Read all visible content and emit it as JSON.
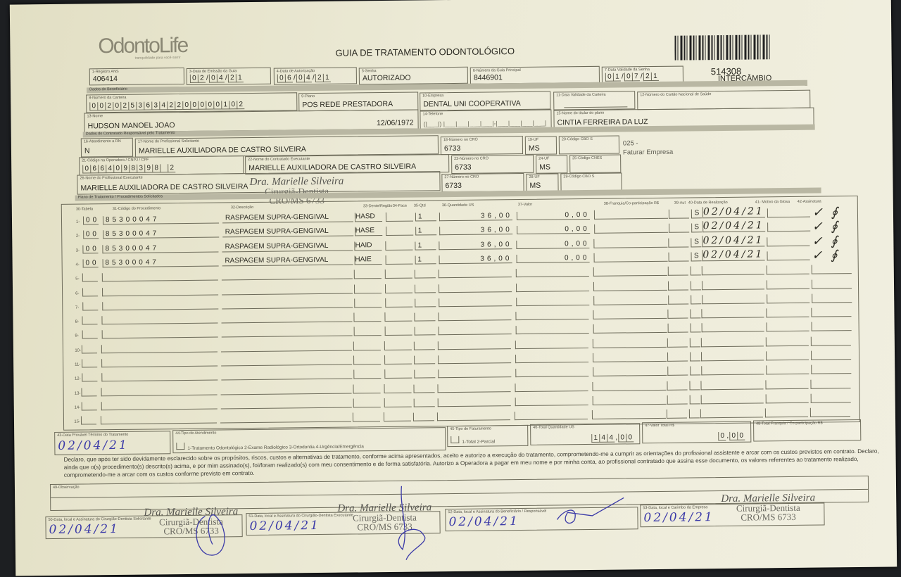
{
  "header": {
    "logo": "OdontoLife",
    "logo_tagline": "tranquilidade para você sorrir",
    "title": "GUIA DE TRATAMENTO ODONTOLÓGICO",
    "guide_number": "514308",
    "guide_type": "INTERCÂMBIO"
  },
  "fields": {
    "f1": {
      "label": "1-Registro ANS",
      "value": "406414"
    },
    "f3": {
      "label": "3-Data de Emissão da Guia",
      "value": "02/04/21"
    },
    "f4": {
      "label": "4-Data de Autorização",
      "value": "06/04/21"
    },
    "f5": {
      "label": "5-Senha",
      "value": "AUTORIZADO"
    },
    "f6": {
      "label": "6-Número da Guia Principal",
      "value": "8446901"
    },
    "f7": {
      "label": "7-Data Validade da Senha",
      "value": "01/07/21"
    },
    "sec_beneficiario": "Dados do Beneficiário",
    "f8": {
      "label": "8-Número da Carteira",
      "value": "00202536342200000102"
    },
    "f9": {
      "label": "9-Plano",
      "value": "POS REDE PRESTADORA"
    },
    "f10": {
      "label": "10-Empresa",
      "value": "DENTAL UNI  COOPERATIVA"
    },
    "f11": {
      "label": "11-Data Validade da Carteira",
      "value": ""
    },
    "f12": {
      "label": "12-Número do Cartão Nacional de Saúde",
      "value": ""
    },
    "f13": {
      "label": "13-Nome",
      "value": "HUDSON MANOEL JOAO",
      "birth": "12/06/1972"
    },
    "f14": {
      "label": "14-Telefone",
      "value": ""
    },
    "f15": {
      "label": "15-Nome do titular do plano",
      "value": "CINTIA FERREIRA DA LUZ"
    },
    "sec_contratado": "Dados do Contratado Responsável pelo Tratamento",
    "f16": {
      "label": "16-Atendimento a RN",
      "value": "N"
    },
    "f17": {
      "label": "17-Nome do Profissional Solicitante",
      "value": "MARIELLE AUXILIADORA DE CASTRO SILVEIRA"
    },
    "f18": {
      "label": "18-Número no CRO",
      "value": "6733"
    },
    "f19": {
      "label": "19-UF",
      "value": "MS"
    },
    "f20": {
      "label": "20-Código CBO S",
      "value": ""
    },
    "billing_note_1": "025 -",
    "billing_note_2": "Faturar Empresa",
    "f21": {
      "label": "21-Código na Operadora / CNPJ / CPF",
      "value": "0664098398 2"
    },
    "f22": {
      "label": "22-Nome do Contratado Executante",
      "value": "MARIELLE AUXILIADORA DE CASTRO SILVEIRA"
    },
    "f23": {
      "label": "23-Número no CRO",
      "value": "6733"
    },
    "f24": {
      "label": "24-UF",
      "value": "MS"
    },
    "f25": {
      "label": "25-Código CNES",
      "value": ""
    },
    "f26": {
      "label": "26-Nome do Profissional Executante",
      "value": "MARIELLE AUXILIADORA DE CASTRO SILVEIRA"
    },
    "f27": {
      "label": "27-Número no CRO",
      "value": "6733"
    },
    "f28": {
      "label": "28-UF",
      "value": "MS"
    },
    "f29": {
      "label": "29-Código CBO S",
      "value": ""
    },
    "sec_plano": "Plano de Tratamento / Procedimentos Solicitados"
  },
  "stamp": {
    "name": "Dra. Marielle Silveira",
    "title": "Cirurgiã-Dentista",
    "cro": "CRO/MS 6733"
  },
  "table": {
    "columns": [
      "30-Tabela",
      "31-Código do Procedimento",
      "32-Descrição",
      "33-Dente/Região",
      "34-Face",
      "35-Qtd",
      "36-Quantidade US",
      "37-Valor",
      "38-Franquia/Co-participação R$",
      "39-Aut",
      "40-Data de Realização",
      "41- Motivo da Glosa",
      "42-Assinatura"
    ],
    "row_count": 15,
    "rows": [
      {
        "tabela": "00",
        "codigo": "85300047",
        "descricao": "RASPAGEM SUPRA-GENGIVAL",
        "dente": "HASD",
        "face": "",
        "qtd": "1",
        "qtd_us": "36,00",
        "valor": "0,00",
        "aut": "S",
        "data": "02/04/21"
      },
      {
        "tabela": "00",
        "codigo": "85300047",
        "descricao": "RASPAGEM SUPRA-GENGIVAL",
        "dente": "HASE",
        "face": "",
        "qtd": "1",
        "qtd_us": "36,00",
        "valor": "0,00",
        "aut": "S",
        "data": "02/04/21"
      },
      {
        "tabela": "00",
        "codigo": "85300047",
        "descricao": "RASPAGEM SUPRA-GENGIVAL",
        "dente": "HAID",
        "face": "",
        "qtd": "1",
        "qtd_us": "36,00",
        "valor": "0,00",
        "aut": "S",
        "data": "02/04/21"
      },
      {
        "tabela": "00",
        "codigo": "85300047",
        "descricao": "RASPAGEM SUPRA-GENGIVAL",
        "dente": "HAIE",
        "face": "",
        "qtd": "1",
        "qtd_us": "36,00",
        "valor": "0,00",
        "aut": "S",
        "data": "02/04/21"
      }
    ]
  },
  "footer": {
    "f43": {
      "label": "43-Data Provável Término do Tratamento",
      "value": "02/04/21"
    },
    "f44": {
      "label": "44-Tipo de Atendimento",
      "options": "1-Tratamento Odontológico  2-Exame Radiológico  3-Ortodontia  4-Urgência/Emergência"
    },
    "f45": {
      "label": "45-Tipo de Faturamento",
      "options": "1-Total  2-Parcial"
    },
    "f46": {
      "label": "46-Total Quantidade US",
      "value": "144,00"
    },
    "f47": {
      "label": "47-Valor Total R$",
      "value": "0,00"
    },
    "f48": {
      "label": "48-Total Franquia / Co-participação R$",
      "value": ""
    },
    "declaration": "Declaro, que após ter sido devidamente esclarecido sobre os propósitos, riscos, custos e alternativas de tratamento, conforme acima apresentados, aceito e autorizo a execução do tratamento, comprometendo-me a cumprir as orientações do profissional assistente e arcar com os custos previstos em contrato. Declaro, ainda que o(s) procedimento(s) descrito(s) acima, e por mim assinado(s), foi/foram realizado(s) com meu consentimento e de forma satisfatória. Autorizo a Operadora a pagar em meu nome e por minha conta, ao profissional contratado que assina esse documento, os valores referentes ao tratamento realizado, comprometendo-me a arcar com os custos conforme previsto em contrato.",
    "f49": {
      "label": "49-Observação",
      "value": ""
    },
    "f50": {
      "label": "50-Data, local e Assinatura do Cirurgião-Dentista Solicitante",
      "value": "02/04/21"
    },
    "f51": {
      "label": "51-Data, local e Assinatura do Cirurgião-Dentista Executante",
      "value": "02/04/21"
    },
    "f52": {
      "label": "52-Data, local e Assinatura do Beneficiário / Responsável",
      "value": "02/04/21"
    },
    "f53": {
      "label": "53-Data, local e Carimbo da Empresa",
      "value": "02/04/21"
    }
  },
  "colors": {
    "paper": "#ecead6",
    "ink": "#3b3aa8",
    "print": "#2b2a22"
  }
}
